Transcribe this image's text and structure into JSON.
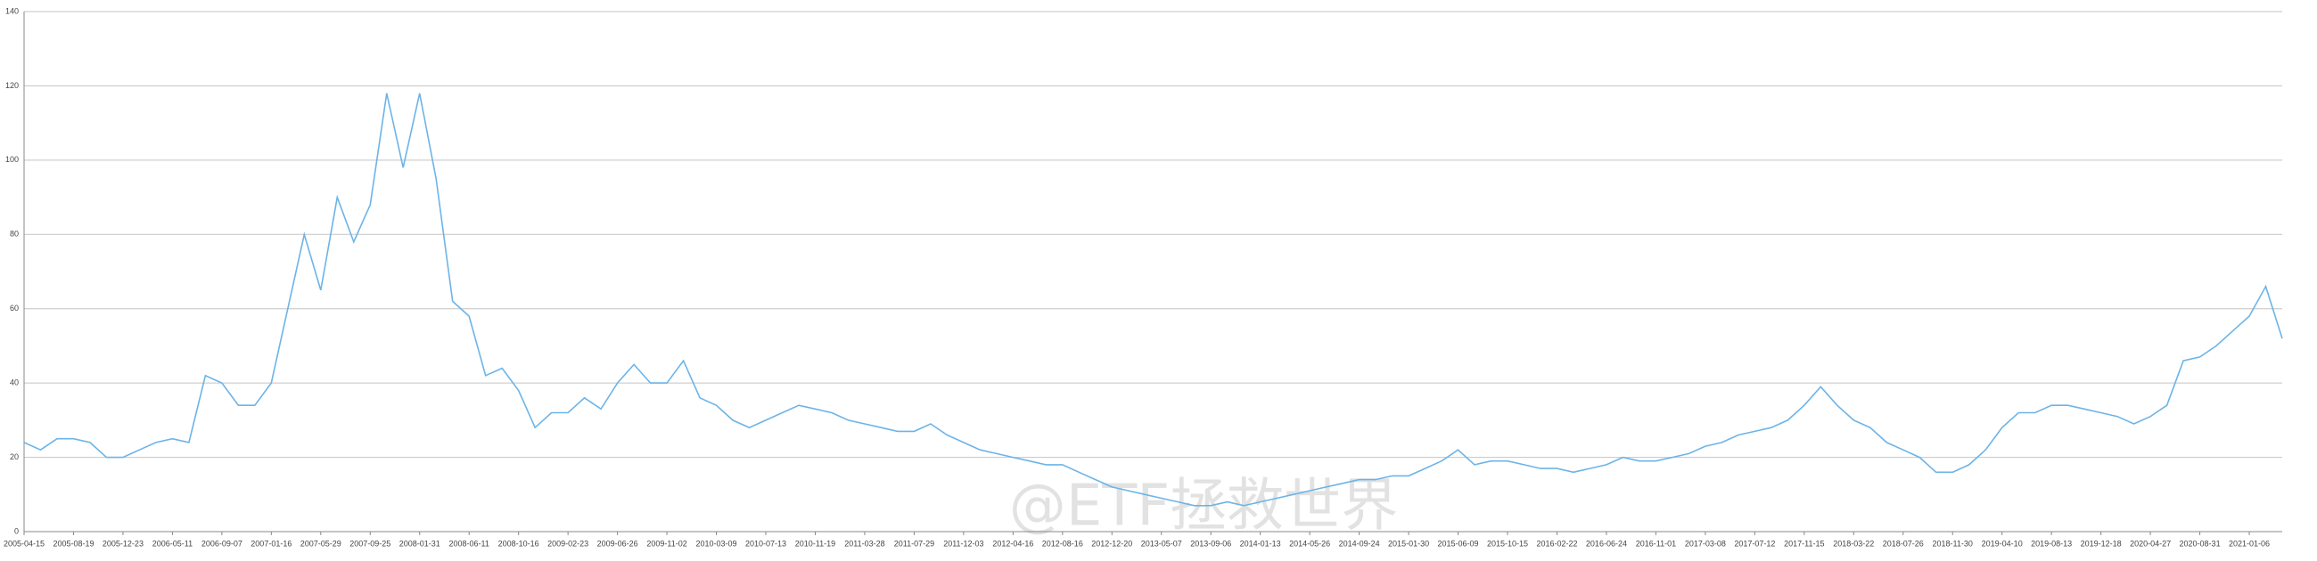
{
  "chart_data": {
    "type": "line",
    "watermark": "@ETF拯救世界",
    "categories": [
      "2005-04-15",
      null,
      null,
      "2005-08-19",
      null,
      null,
      "2005-12-23",
      null,
      null,
      "2006-05-11",
      null,
      null,
      "2006-09-07",
      null,
      null,
      "2007-01-16",
      null,
      null,
      "2007-05-29",
      null,
      null,
      "2007-09-25",
      null,
      null,
      "2008-01-31",
      null,
      null,
      "2008-06-11",
      null,
      null,
      "2008-10-16",
      null,
      null,
      "2009-02-23",
      null,
      null,
      "2009-06-26",
      null,
      null,
      "2009-11-02",
      null,
      null,
      "2010-03-09",
      null,
      null,
      "2010-07-13",
      null,
      null,
      "2010-11-19",
      null,
      null,
      "2011-03-28",
      null,
      null,
      "2011-07-29",
      null,
      null,
      "2011-12-03",
      null,
      null,
      "2012-04-16",
      null,
      null,
      "2012-08-16",
      null,
      null,
      "2012-12-20",
      null,
      null,
      "2013-05-07",
      null,
      null,
      "2013-09-06",
      null,
      null,
      "2014-01-13",
      null,
      null,
      "2014-05-26",
      null,
      null,
      "2014-09-24",
      null,
      null,
      "2015-01-30",
      null,
      null,
      "2015-06-09",
      null,
      null,
      "2015-10-15",
      null,
      null,
      "2016-02-22",
      null,
      null,
      "2016-06-24",
      null,
      null,
      "2016-11-01",
      null,
      null,
      "2017-03-08",
      null,
      null,
      "2017-07-12",
      null,
      null,
      "2017-11-15",
      null,
      null,
      "2018-03-22",
      null,
      null,
      "2018-07-26",
      null,
      null,
      "2018-11-30",
      null,
      null,
      "2019-04-10",
      null,
      null,
      "2019-08-13",
      null,
      null,
      "2019-12-18",
      null,
      null,
      "2020-04-27",
      null,
      null,
      "2020-08-31",
      null,
      null,
      "2021-01-06",
      null,
      null
    ],
    "values": [
      24,
      22,
      25,
      25,
      24,
      20,
      20,
      22,
      24,
      25,
      24,
      42,
      40,
      34,
      34,
      40,
      60,
      80,
      65,
      90,
      78,
      88,
      118,
      98,
      118,
      95,
      62,
      58,
      42,
      44,
      38,
      28,
      32,
      32,
      36,
      33,
      40,
      45,
      40,
      40,
      46,
      36,
      34,
      30,
      28,
      30,
      32,
      34,
      33,
      32,
      30,
      29,
      28,
      27,
      27,
      29,
      26,
      24,
      22,
      21,
      20,
      19,
      18,
      18,
      16,
      14,
      12,
      11,
      10,
      9,
      8,
      7,
      7,
      8,
      7,
      8,
      9,
      10,
      11,
      12,
      13,
      14,
      14,
      15,
      15,
      17,
      19,
      22,
      18,
      19,
      19,
      18,
      17,
      17,
      16,
      17,
      18,
      20,
      19,
      19,
      20,
      21,
      23,
      24,
      26,
      27,
      28,
      30,
      34,
      39,
      34,
      30,
      28,
      24,
      22,
      20,
      16,
      16,
      18,
      22,
      28,
      32,
      32,
      34,
      34,
      33,
      32,
      31,
      29,
      31,
      34,
      46,
      47,
      50,
      54,
      58,
      66,
      52
    ],
    "color": "#6cb4e8",
    "ylim": [
      0,
      140
    ],
    "yticks": [
      0,
      20,
      40,
      60,
      80,
      100,
      120,
      140
    ],
    "grid": true
  }
}
